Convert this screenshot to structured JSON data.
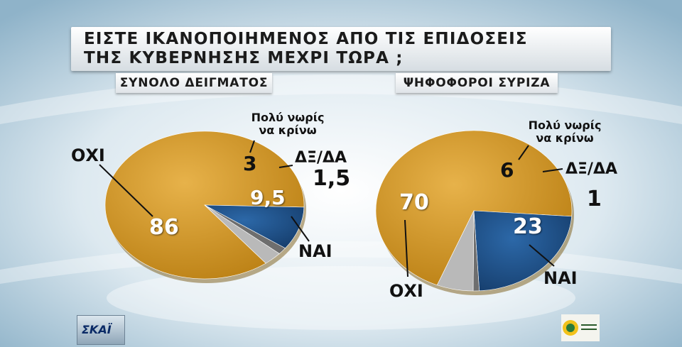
{
  "title": {
    "line1": "ΕΙΣΤΕ ΙΚΑΝΟΠΟΙΗΜΕΝΟΣ ΑΠΟ ΤΙΣ ΕΠΙΔΟΣΕΙΣ",
    "line2": "ΤΗΣ ΚΥΒΕΡΝΗΣΗΣ ΜΕΧΡΙ ΤΩΡΑ ;"
  },
  "colors": {
    "oxi": "#c98f1c",
    "nai": "#1e4f86",
    "early": "#b9b9b9",
    "dk": "#6e6e6e"
  },
  "chart_data": [
    {
      "type": "pie",
      "title": "ΣΥΝΟΛΟ ΔΕΙΓΜΑΤΟΣ",
      "slices": [
        {
          "label": "ΟΧΙ",
          "value": 86
        },
        {
          "label": "ΝΑΙ",
          "value": 9.5
        },
        {
          "label": "ΔΞ/ΔΑ",
          "value": 1.5
        },
        {
          "label": "Πολύ νωρίς να κρίνω",
          "value": 3
        }
      ],
      "value_labels": [
        "86",
        "9,5",
        "1,5",
        "3"
      ]
    },
    {
      "type": "pie",
      "title": "ΨΗΦΟΦΟΡΟΙ ΣΥΡΙΖΑ",
      "slices": [
        {
          "label": "ΟΧΙ",
          "value": 70
        },
        {
          "label": "ΝΑΙ",
          "value": 23
        },
        {
          "label": "ΔΞ/ΔΑ",
          "value": 1
        },
        {
          "label": "Πολύ νωρίς να κρίνω",
          "value": 6
        }
      ],
      "value_labels": [
        "70",
        "23",
        "1",
        "6"
      ]
    }
  ],
  "labels": {
    "early_line1": "Πολύ νωρίς",
    "early_line2": "να κρίνω",
    "dk": "ΔΞ/ΔΑ",
    "oxi": "ΟΧΙ",
    "nai": "ΝΑΙ"
  },
  "logo_left": "ΣΚΑΪ"
}
